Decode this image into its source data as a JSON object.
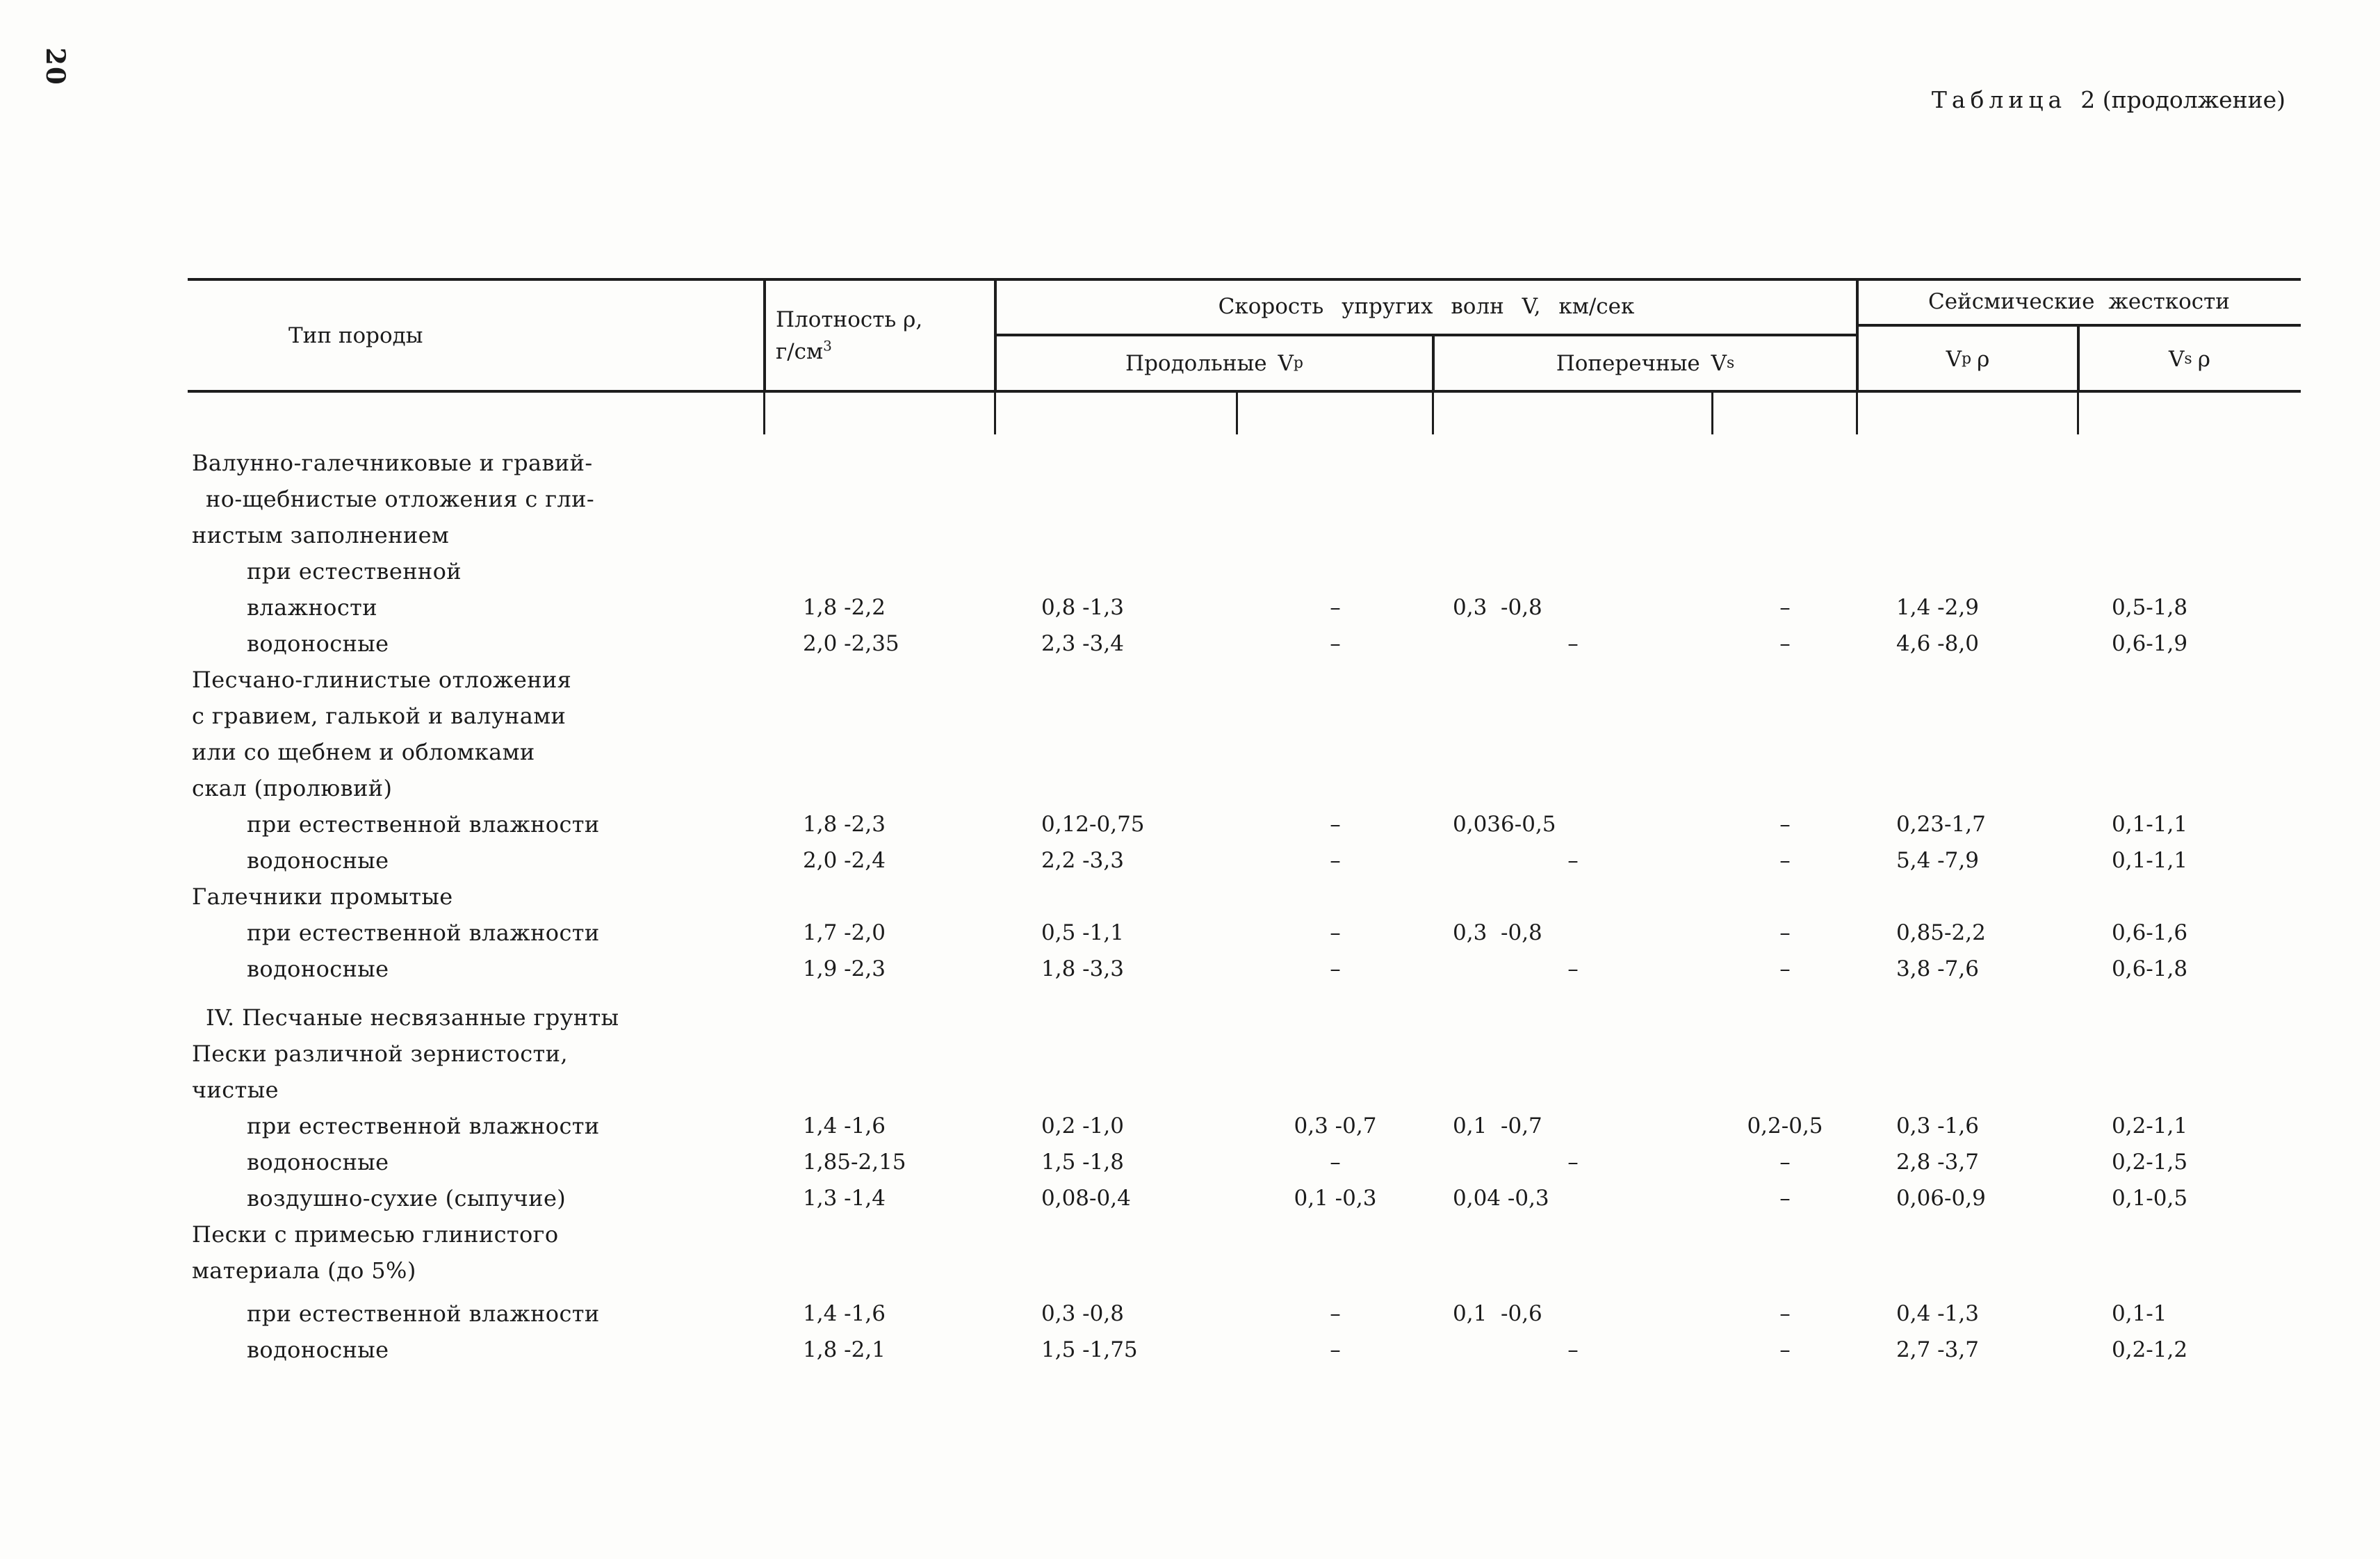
{
  "page_number": "20",
  "title": {
    "word": "Таблица",
    "rest": "2 (продолжение)"
  },
  "header": {
    "type_col": "Тип породы",
    "density_line1": "Плотность ρ,",
    "density_line2": "г/см",
    "density_sup": "3",
    "velocity_group": "Скорость упругих волн V, км/сек",
    "stiffness_group": "Сейсмические жесткости",
    "longitudinal": "Продольные V",
    "longitudinal_sub": "p",
    "transverse": "Поперечные V",
    "transverse_sub": "s",
    "vp_rho_main": "V",
    "vp_rho_sub": "p",
    "vp_rho_tail": "ρ",
    "vs_rho_main": "V",
    "vs_rho_sub": "s",
    "vs_rho_tail": "ρ"
  },
  "rows": [
    {
      "label": "Валунно-галечниковые и гравий-",
      "indent": 0,
      "values": null
    },
    {
      "label": "но-щебнистые отложения с гли-",
      "indent": 2,
      "values": null
    },
    {
      "label": "нистым заполнением",
      "indent": 0,
      "values": null
    },
    {
      "label": "при естественной",
      "indent": 1,
      "values": null
    },
    {
      "label": "влажности",
      "indent": 1,
      "values": [
        "1,8 -2,2",
        "0,8 -1,3",
        "–",
        "0,3  -0,8",
        "–",
        "1,4 -2,9",
        "0,5-1,8"
      ]
    },
    {
      "label": "водоносные",
      "indent": 1,
      "values": [
        "2,0 -2,35",
        "2,3 -3,4",
        "–",
        "–",
        "–",
        "4,6 -8,0",
        "0,6-1,9"
      ]
    },
    {
      "label": "Песчано-глинистые отложения",
      "indent": 0,
      "values": null
    },
    {
      "label": "с гравием, галькой и валунами",
      "indent": 0,
      "values": null
    },
    {
      "label": "или со щебнем и обломками",
      "indent": 0,
      "values": null
    },
    {
      "label": "скал (пролювий)",
      "indent": 0,
      "values": null
    },
    {
      "label": "при естественной влажности",
      "indent": 1,
      "values": [
        "1,8 -2,3",
        "0,12-0,75",
        "–",
        "0,036-0,5",
        "–",
        "0,23-1,7",
        "0,1-1,1"
      ]
    },
    {
      "label": "водоносные",
      "indent": 1,
      "values": [
        "2,0 -2,4",
        "2,2 -3,3",
        "–",
        "–",
        "–",
        "5,4 -7,9",
        "0,1-1,1"
      ]
    },
    {
      "label": "Галечники промытые",
      "indent": 0,
      "values": null
    },
    {
      "label": "при естественной влажности",
      "indent": 1,
      "values": [
        "1,7 -2,0",
        "0,5 -1,1",
        "–",
        "0,3  -0,8",
        "–",
        "0,85-2,2",
        "0,6-1,6"
      ]
    },
    {
      "label": "водоносные",
      "indent": 1,
      "values": [
        "1,9 -2,3",
        "1,8 -3,3",
        "–",
        "–",
        "–",
        "3,8 -7,6",
        "0,6-1,8"
      ]
    },
    {
      "label": "IV. Песчаные несвязанные грунты",
      "indent": 2,
      "gap": 18,
      "values": null
    },
    {
      "label": "Пески различной зернистости,",
      "indent": 0,
      "values": null
    },
    {
      "label": "чистые",
      "indent": 0,
      "values": null
    },
    {
      "label": "при естественной влажности",
      "indent": 1,
      "values": [
        "1,4 -1,6",
        "0,2 -1,0",
        "0,3 -0,7",
        "0,1  -0,7",
        "0,2-0,5",
        "0,3 -1,6",
        "0,2-1,1"
      ]
    },
    {
      "label": "водоносные",
      "indent": 1,
      "values": [
        "1,85-2,15",
        "1,5 -1,8",
        "–",
        "–",
        "–",
        "2,8 -3,7",
        "0,2-1,5"
      ]
    },
    {
      "label": "воздушно-сухие (сыпучие)",
      "indent": 1,
      "values": [
        "1,3 -1,4",
        "0,08-0,4",
        "0,1 -0,3",
        "0,04 -0,3",
        "–",
        "0,06-0,9",
        "0,1-0,5"
      ]
    },
    {
      "label": "Пески с примесью глинистого",
      "indent": 0,
      "values": null
    },
    {
      "label": "материала (до 5%)",
      "indent": 0,
      "values": null
    },
    {
      "label": "при естественной влажности",
      "indent": 1,
      "gap": 10,
      "values": [
        "1,4 -1,6",
        "0,3 -0,8",
        "–",
        "0,1  -0,6",
        "–",
        "0,4 -1,3",
        "0,1-1"
      ]
    },
    {
      "label": "водоносные",
      "indent": 1,
      "values": [
        "1,8 -2,1",
        "1,5 -1,75",
        "–",
        "–",
        "–",
        "2,7 -3,7",
        "0,2-1,2"
      ]
    }
  ]
}
